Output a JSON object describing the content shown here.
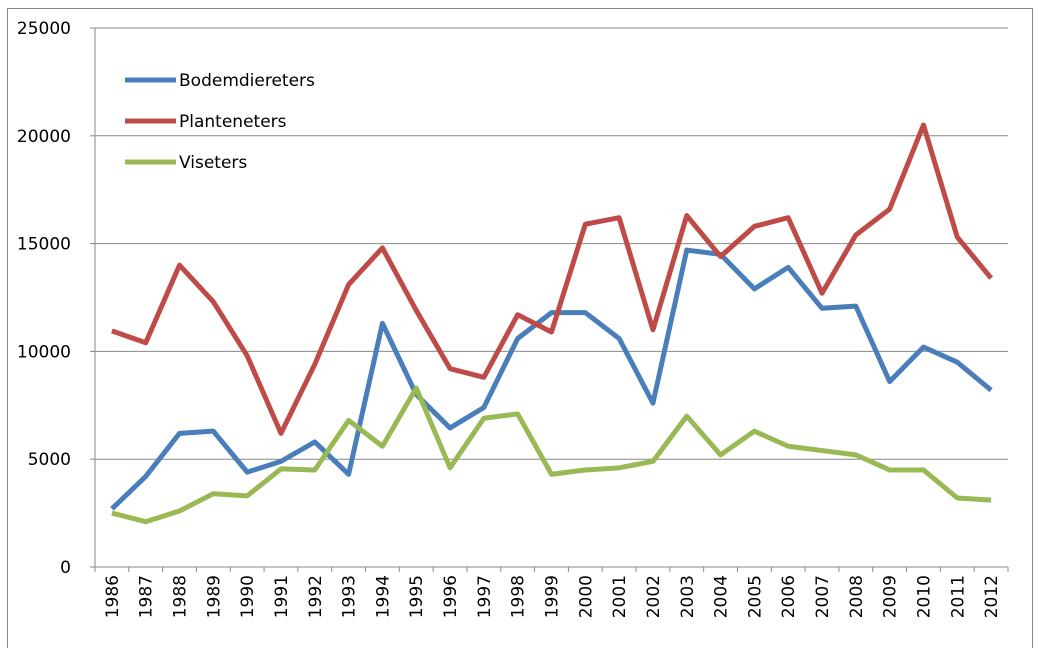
{
  "chart_data": {
    "type": "line",
    "categories": [
      "1986",
      "1987",
      "1988",
      "1989",
      "1990",
      "1991",
      "1992",
      "1993",
      "1994",
      "1995",
      "1996",
      "1997",
      "1998",
      "1999",
      "2000",
      "2001",
      "2002",
      "2003",
      "2004",
      "2005",
      "2006",
      "2007",
      "2008",
      "2009",
      "2010",
      "2011",
      "2012"
    ],
    "series": [
      {
        "name": "Bodemdiereters",
        "color": "#4a7ebb",
        "values": [
          2700,
          4200,
          6200,
          6300,
          4400,
          4900,
          5800,
          4300,
          11300,
          8000,
          6450,
          7400,
          10600,
          11800,
          11800,
          10600,
          7600,
          14700,
          14500,
          12900,
          13900,
          12000,
          12100,
          8600,
          10200,
          9500,
          8200
        ]
      },
      {
        "name": "Planteneters",
        "color": "#be4b48",
        "values": [
          10950,
          10400,
          14000,
          12300,
          9800,
          6200,
          9400,
          13100,
          14800,
          11900,
          9200,
          8800,
          11700,
          10900,
          15900,
          16200,
          11000,
          16300,
          14400,
          15800,
          16200,
          12700,
          15400,
          16600,
          20500,
          15300,
          13400
        ]
      },
      {
        "name": "Viseters",
        "color": "#98b954",
        "values": [
          2500,
          2100,
          2600,
          3400,
          3300,
          4550,
          4500,
          6800,
          5600,
          8300,
          4600,
          6900,
          7100,
          4300,
          4500,
          4600,
          4900,
          7000,
          5200,
          6300,
          5600,
          5400,
          5200,
          4500,
          4500,
          3200,
          3100
        ]
      }
    ],
    "ylim": [
      0,
      25000
    ],
    "yticks": [
      0,
      5000,
      10000,
      15000,
      20000,
      25000
    ],
    "grid": true,
    "legend": "top-left"
  }
}
